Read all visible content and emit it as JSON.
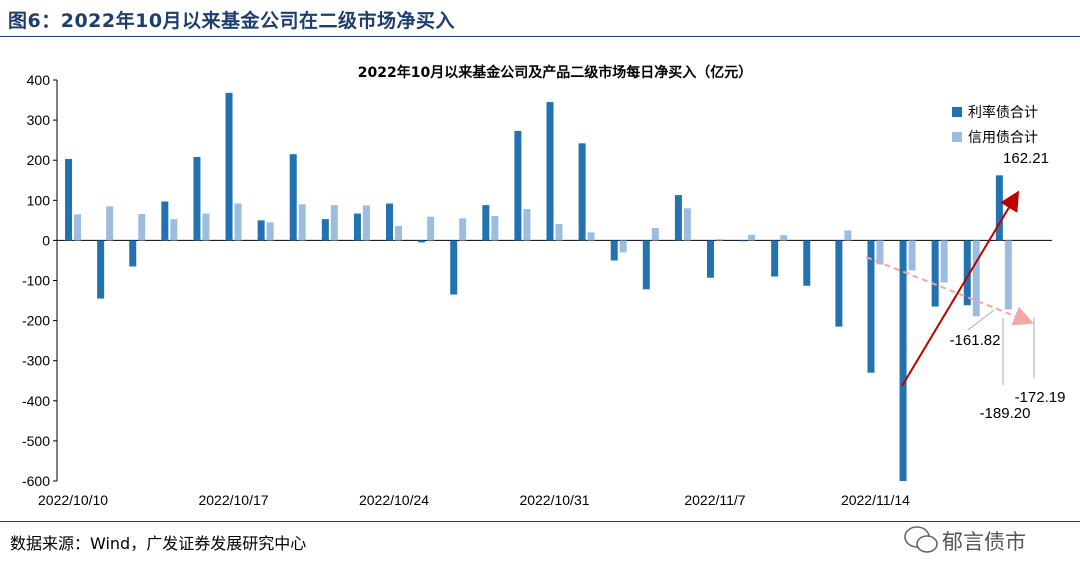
{
  "figure_title": "图6：2022年10月以来基金公司在二级市场净买入",
  "source": "数据来源：Wind，广发证券发展研究中心",
  "watermark": "郁言债市",
  "colors": {
    "rate_bond": "#2272b0",
    "credit_bond": "#9cbde0",
    "frame": "#1f3e6e",
    "trend_up": "#c00000",
    "trend_down": "#f4a6a6"
  },
  "chart_data": {
    "type": "bar",
    "title": "2022年10月以来基金公司及产品二级市场每日净买入（亿元）",
    "ylim": [
      -600,
      400
    ],
    "yticks": [
      400,
      300,
      200,
      100,
      0,
      -100,
      -200,
      -300,
      -400,
      -500,
      -600
    ],
    "x_tick_labels": [
      "2022/10/10",
      "2022/10/17",
      "2022/10/24",
      "2022/10/31",
      "2022/11/7",
      "2022/11/14"
    ],
    "x_tick_index": [
      0,
      5,
      10,
      15,
      20,
      25
    ],
    "categories": [
      "2022/10/10",
      "2022/10/11",
      "2022/10/12",
      "2022/10/13",
      "2022/10/14",
      "2022/10/17",
      "2022/10/18",
      "2022/10/19",
      "2022/10/20",
      "2022/10/21",
      "2022/10/24",
      "2022/10/25",
      "2022/10/26",
      "2022/10/27",
      "2022/10/28",
      "2022/10/31",
      "2022/11/1",
      "2022/11/2",
      "2022/11/3",
      "2022/11/4",
      "2022/11/7",
      "2022/11/8",
      "2022/11/9",
      "2022/11/10",
      "2022/11/11",
      "2022/11/14",
      "2022/11/15",
      "2022/11/16",
      "2022/11/17",
      "2022/11/18",
      "2022/11/21"
    ],
    "series": [
      {
        "name": "利率债合计",
        "values": [
          203,
          -145,
          -65,
          97,
          208,
          368,
          50,
          215,
          53,
          67,
          92,
          -5,
          -135,
          88,
          273,
          345,
          242,
          -50,
          -122,
          113,
          -93,
          -2,
          -90,
          -113,
          -215,
          -330,
          -600,
          -165,
          -161.82,
          162.21,
          0
        ]
      },
      {
        "name": "信用债合计",
        "values": [
          65,
          85,
          66,
          53,
          67,
          92,
          45,
          90,
          88,
          87,
          36,
          59,
          55,
          61,
          78,
          41,
          20,
          -30,
          31,
          80,
          3,
          14,
          13,
          0,
          25,
          -60,
          -75,
          -105,
          -189.2,
          -172.19,
          0
        ]
      }
    ],
    "legend": "top-right",
    "annotations": [
      "162.21",
      "-161.82",
      "-189.20",
      "-172.19"
    ]
  }
}
